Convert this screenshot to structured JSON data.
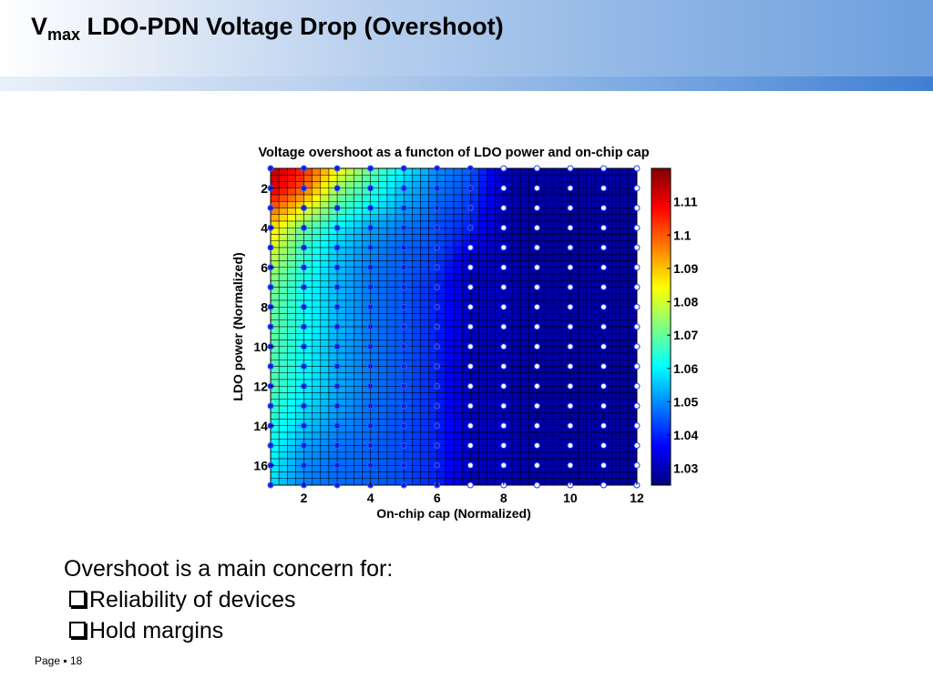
{
  "slide": {
    "title_main": "V",
    "title_sub": "max",
    "title_rest": " LDO-PDN Voltage Drop (Overshoot)",
    "bullets": {
      "intro": "Overshoot is a main concern for:",
      "items": [
        "Reliability of devices",
        "Hold margins"
      ]
    },
    "footer": {
      "page_label": "Page",
      "separator": "▪",
      "page_number": "18"
    }
  },
  "chart_data": {
    "type": "heatmap",
    "title": "Voltage overshoot as a functon of LDO power and on-chip cap",
    "xlabel": "On-chip cap (Normalized)",
    "ylabel": "LDO power (Normalized)",
    "xlim": [
      1,
      12
    ],
    "ylim": [
      1,
      17
    ],
    "y_reversed": true,
    "x_ticks": [
      2,
      4,
      6,
      8,
      10,
      12
    ],
    "y_ticks": [
      2,
      4,
      6,
      8,
      10,
      12,
      14,
      16
    ],
    "colorbar": {
      "range": [
        1.025,
        1.12
      ],
      "ticks": [
        1.03,
        1.04,
        1.05,
        1.06,
        1.07,
        1.08,
        1.09,
        1.1,
        1.11
      ],
      "tick_labels": [
        "1.03",
        "1.04",
        "1.05",
        "1.06",
        "1.07",
        "1.08",
        "1.09",
        "1.1",
        "1.11"
      ]
    },
    "grid": true,
    "sample_points": {
      "x": [
        1,
        2,
        3,
        4,
        5,
        6,
        7,
        8,
        9,
        10,
        11,
        12
      ],
      "y": [
        1,
        2,
        3,
        4,
        5,
        6,
        7,
        8,
        9,
        10,
        11,
        12,
        13,
        14,
        15,
        16,
        17
      ]
    },
    "values": [
      [
        1.115,
        1.105,
        1.085,
        1.07,
        1.06,
        1.05,
        1.046,
        1.03,
        1.028,
        1.028,
        1.028,
        1.028
      ],
      [
        1.112,
        1.1,
        1.075,
        1.065,
        1.055,
        1.048,
        1.044,
        1.03,
        1.028,
        1.028,
        1.028,
        1.028
      ],
      [
        1.1,
        1.085,
        1.068,
        1.06,
        1.052,
        1.046,
        1.042,
        1.03,
        1.028,
        1.028,
        1.028,
        1.028
      ],
      [
        1.088,
        1.07,
        1.06,
        1.052,
        1.048,
        1.044,
        1.04,
        1.03,
        1.028,
        1.028,
        1.028,
        1.028
      ],
      [
        1.082,
        1.066,
        1.056,
        1.05,
        1.046,
        1.044,
        1.036,
        1.03,
        1.028,
        1.028,
        1.028,
        1.028
      ],
      [
        1.076,
        1.064,
        1.055,
        1.048,
        1.046,
        1.042,
        1.032,
        1.03,
        1.028,
        1.028,
        1.028,
        1.028
      ],
      [
        1.072,
        1.062,
        1.054,
        1.048,
        1.045,
        1.04,
        1.031,
        1.03,
        1.028,
        1.028,
        1.028,
        1.028
      ],
      [
        1.07,
        1.062,
        1.054,
        1.048,
        1.045,
        1.04,
        1.031,
        1.03,
        1.028,
        1.028,
        1.028,
        1.028
      ],
      [
        1.07,
        1.062,
        1.054,
        1.048,
        1.045,
        1.04,
        1.031,
        1.03,
        1.028,
        1.028,
        1.028,
        1.028
      ],
      [
        1.069,
        1.061,
        1.053,
        1.048,
        1.045,
        1.04,
        1.031,
        1.03,
        1.028,
        1.028,
        1.028,
        1.028
      ],
      [
        1.068,
        1.061,
        1.053,
        1.048,
        1.045,
        1.04,
        1.031,
        1.03,
        1.028,
        1.028,
        1.028,
        1.028
      ],
      [
        1.068,
        1.06,
        1.053,
        1.048,
        1.045,
        1.04,
        1.031,
        1.03,
        1.028,
        1.028,
        1.028,
        1.028
      ],
      [
        1.066,
        1.058,
        1.052,
        1.047,
        1.045,
        1.04,
        1.031,
        1.03,
        1.028,
        1.028,
        1.028,
        1.028
      ],
      [
        1.064,
        1.056,
        1.05,
        1.047,
        1.044,
        1.04,
        1.031,
        1.03,
        1.028,
        1.028,
        1.028,
        1.028
      ],
      [
        1.062,
        1.052,
        1.048,
        1.046,
        1.044,
        1.04,
        1.031,
        1.03,
        1.028,
        1.028,
        1.028,
        1.028
      ],
      [
        1.06,
        1.05,
        1.047,
        1.046,
        1.044,
        1.04,
        1.031,
        1.03,
        1.028,
        1.028,
        1.028,
        1.028
      ],
      [
        1.058,
        1.049,
        1.047,
        1.046,
        1.044,
        1.04,
        1.031,
        1.03,
        1.028,
        1.028,
        1.028,
        1.028
      ]
    ]
  }
}
